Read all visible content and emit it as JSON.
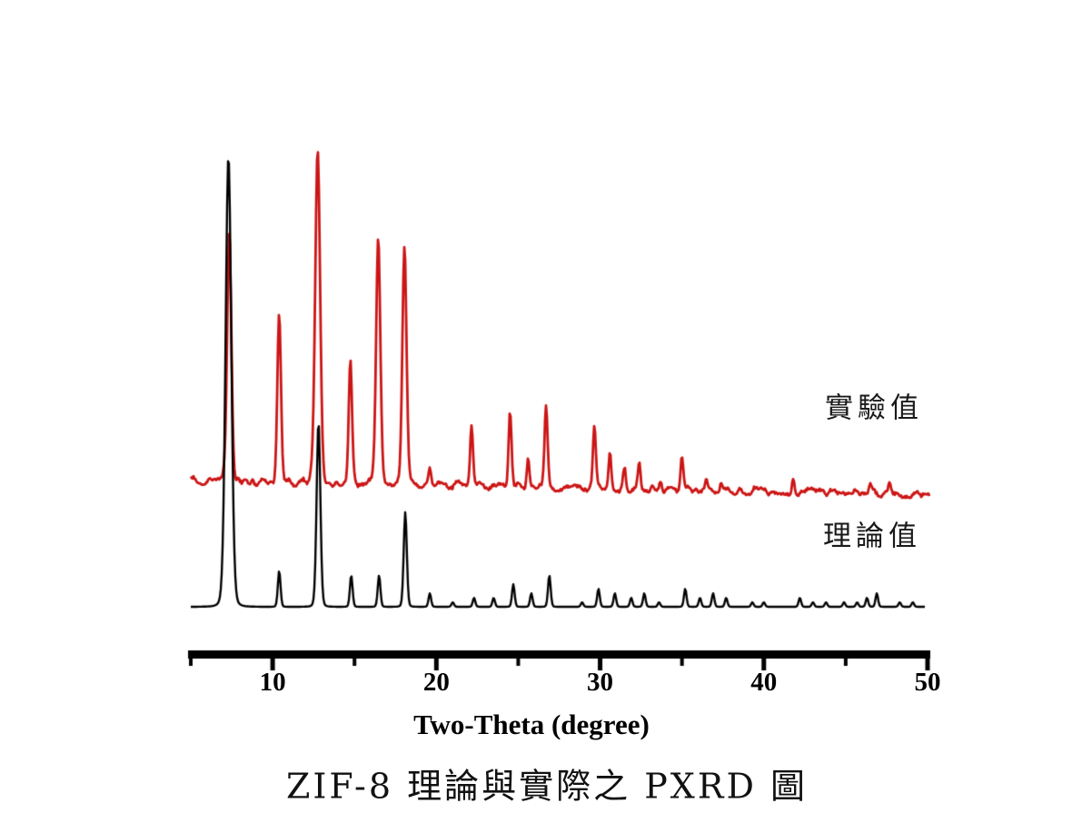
{
  "figure": {
    "background": "#ffffff",
    "caption": "ZIF-8 理論與實際之 PXRD 圖"
  },
  "chart_data": {
    "type": "line",
    "subtype": "powder-xrd-pattern",
    "title": "ZIF-8 理論與實際之 PXRD 圖",
    "xlabel": "Two-Theta (degree)",
    "ylabel": "",
    "x_axis": {
      "min": 5,
      "max": 50,
      "major_ticks": [
        10,
        20,
        30,
        40,
        50
      ],
      "minor_ticks": [
        5,
        15,
        25,
        35,
        45
      ]
    },
    "y_axis": {
      "visible": false,
      "units": "relative intensity (a.u.), two stacked offset traces"
    },
    "grid": false,
    "legend_position": "inline-text-labels-right",
    "series": [
      {
        "name": "experimental",
        "label": "實驗值",
        "color": "#cc1515",
        "line_style": "noisy",
        "stack_position": "top",
        "intensity_scale": "percent of series maximum peak",
        "peaks_2theta_intensity": [
          [
            7.35,
            74
          ],
          [
            10.4,
            50
          ],
          [
            12.75,
            100
          ],
          [
            14.75,
            37
          ],
          [
            16.45,
            73
          ],
          [
            18.05,
            72
          ],
          [
            19.6,
            5
          ],
          [
            22.15,
            18
          ],
          [
            24.5,
            22
          ],
          [
            25.6,
            9
          ],
          [
            26.7,
            24
          ],
          [
            29.65,
            19
          ],
          [
            30.6,
            11
          ],
          [
            31.5,
            6
          ],
          [
            32.4,
            8
          ],
          [
            33.7,
            3
          ],
          [
            35.0,
            10
          ],
          [
            36.5,
            4
          ],
          [
            37.4,
            3
          ],
          [
            41.8,
            5
          ],
          [
            46.5,
            3
          ],
          [
            47.7,
            3
          ]
        ]
      },
      {
        "name": "theoretical",
        "label": "理論值",
        "color": "#000000",
        "line_style": "smooth",
        "stack_position": "bottom",
        "intensity_scale": "percent of series maximum peak",
        "peaks_2theta_intensity": [
          [
            7.3,
            100
          ],
          [
            10.4,
            8
          ],
          [
            12.8,
            41
          ],
          [
            14.8,
            7
          ],
          [
            16.5,
            7
          ],
          [
            18.1,
            21
          ],
          [
            19.6,
            3
          ],
          [
            21.0,
            1
          ],
          [
            22.3,
            2
          ],
          [
            23.5,
            2
          ],
          [
            24.7,
            5
          ],
          [
            25.8,
            3
          ],
          [
            26.9,
            7
          ],
          [
            28.9,
            1
          ],
          [
            29.9,
            4
          ],
          [
            30.9,
            3
          ],
          [
            31.9,
            2
          ],
          [
            32.7,
            3
          ],
          [
            33.6,
            1
          ],
          [
            35.2,
            4
          ],
          [
            36.1,
            2
          ],
          [
            36.9,
            3
          ],
          [
            37.7,
            2
          ],
          [
            39.3,
            1
          ],
          [
            40.0,
            1
          ],
          [
            42.2,
            2
          ],
          [
            43.0,
            1
          ],
          [
            43.8,
            1
          ],
          [
            44.9,
            1
          ],
          [
            45.7,
            1
          ],
          [
            46.3,
            2
          ],
          [
            46.9,
            3
          ],
          [
            48.3,
            1
          ],
          [
            49.1,
            1
          ]
        ]
      }
    ]
  }
}
